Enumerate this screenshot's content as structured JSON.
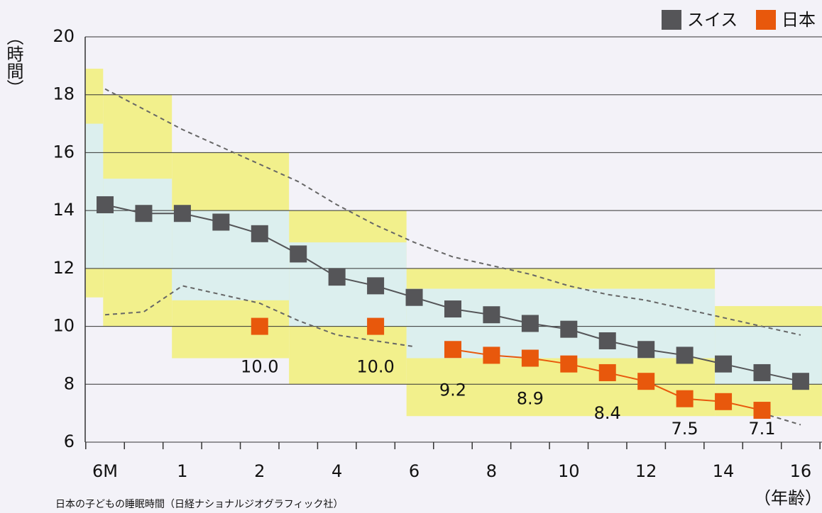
{
  "chart_data": {
    "type": "line",
    "y_label": "（時間）",
    "x_label": "（年齢）",
    "source": "日本の子どもの睡眠時間（日経ナショナルジオグラフィック社）",
    "categories": [
      "6M",
      null,
      "1",
      null,
      "2",
      null,
      "4",
      null,
      "6",
      null,
      "8",
      null,
      "10",
      null,
      "12",
      null,
      "14",
      null,
      "16"
    ],
    "ylim": [
      6,
      20
    ],
    "yticks": [
      6,
      8,
      10,
      12,
      14,
      16,
      18,
      20
    ],
    "grid": true,
    "legend": "top-right",
    "series": [
      {
        "name": "スイス",
        "color": "#555558",
        "values": [
          14.2,
          13.9,
          13.9,
          13.6,
          13.2,
          12.5,
          11.7,
          11.4,
          11.0,
          10.6,
          10.4,
          10.1,
          9.9,
          9.5,
          9.2,
          9.0,
          8.7,
          8.4,
          8.1
        ]
      },
      {
        "name": "日本",
        "color": "#e8580c",
        "values": [
          null,
          null,
          null,
          null,
          10.0,
          null,
          null,
          10.0,
          null,
          9.2,
          9.0,
          8.9,
          8.7,
          8.4,
          8.1,
          7.5,
          7.4,
          7.1,
          null
        ],
        "value_labels": [
          null,
          null,
          null,
          null,
          "10.0",
          null,
          null,
          "10.0",
          null,
          "9.2",
          null,
          "8.9",
          null,
          "8.4",
          null,
          "7.5",
          null,
          "7.1",
          null
        ]
      }
    ],
    "dashed_lines": [
      {
        "color": "#666666",
        "values": [
          18.2,
          17.5,
          16.8,
          16.2,
          15.6,
          15.0,
          14.2,
          13.5,
          12.9,
          12.4,
          12.1,
          11.8,
          11.4,
          11.1,
          10.9,
          10.6,
          10.3,
          10.0,
          9.7
        ]
      },
      {
        "color": "#666666",
        "values": [
          10.4,
          10.5,
          11.4,
          11.1,
          10.8,
          10.2,
          9.7,
          9.5,
          9.3,
          null,
          null,
          null,
          null,
          null,
          null,
          null,
          null,
          7.0,
          6.6
        ]
      }
    ],
    "ranges": [
      {
        "color": "#f2f08c",
        "x0": -0.5,
        "x1": -0.05,
        "low": 11.0,
        "high": 18.9
      },
      {
        "color": "#f2f08c",
        "x0": -0.05,
        "x1": 1.73,
        "low": 10.0,
        "high": 18.0
      },
      {
        "color": "#f2f08c",
        "x0": 1.73,
        "x1": 4.76,
        "low": 8.9,
        "high": 16.0
      },
      {
        "color": "#f2f08c",
        "x0": 4.76,
        "x1": 7.8,
        "low": 8.0,
        "high": 14.0
      },
      {
        "color": "#f2f08c",
        "x0": 7.8,
        "x1": 15.78,
        "low": 6.9,
        "high": 12.0
      },
      {
        "color": "#f2f08c",
        "x0": 15.78,
        "x1": 18.55,
        "low": 6.9,
        "high": 10.7
      },
      {
        "color": "#dcefee",
        "x0": -0.5,
        "x1": -0.05,
        "low": 12.0,
        "high": 17.0
      },
      {
        "color": "#dcefee",
        "x0": -0.05,
        "x1": 1.73,
        "low": 12.0,
        "high": 15.1
      },
      {
        "color": "#dcefee",
        "x0": 1.73,
        "x1": 4.76,
        "low": 10.9,
        "high": 14.0
      },
      {
        "color": "#dcefee",
        "x0": 4.76,
        "x1": 7.8,
        "low": 10.0,
        "high": 12.9
      },
      {
        "color": "#dcefee",
        "x0": 7.8,
        "x1": 15.78,
        "low": 8.9,
        "high": 11.3
      },
      {
        "color": "#dcefee",
        "x0": 15.78,
        "x1": 18.55,
        "low": 8.0,
        "high": 10.0
      }
    ]
  }
}
